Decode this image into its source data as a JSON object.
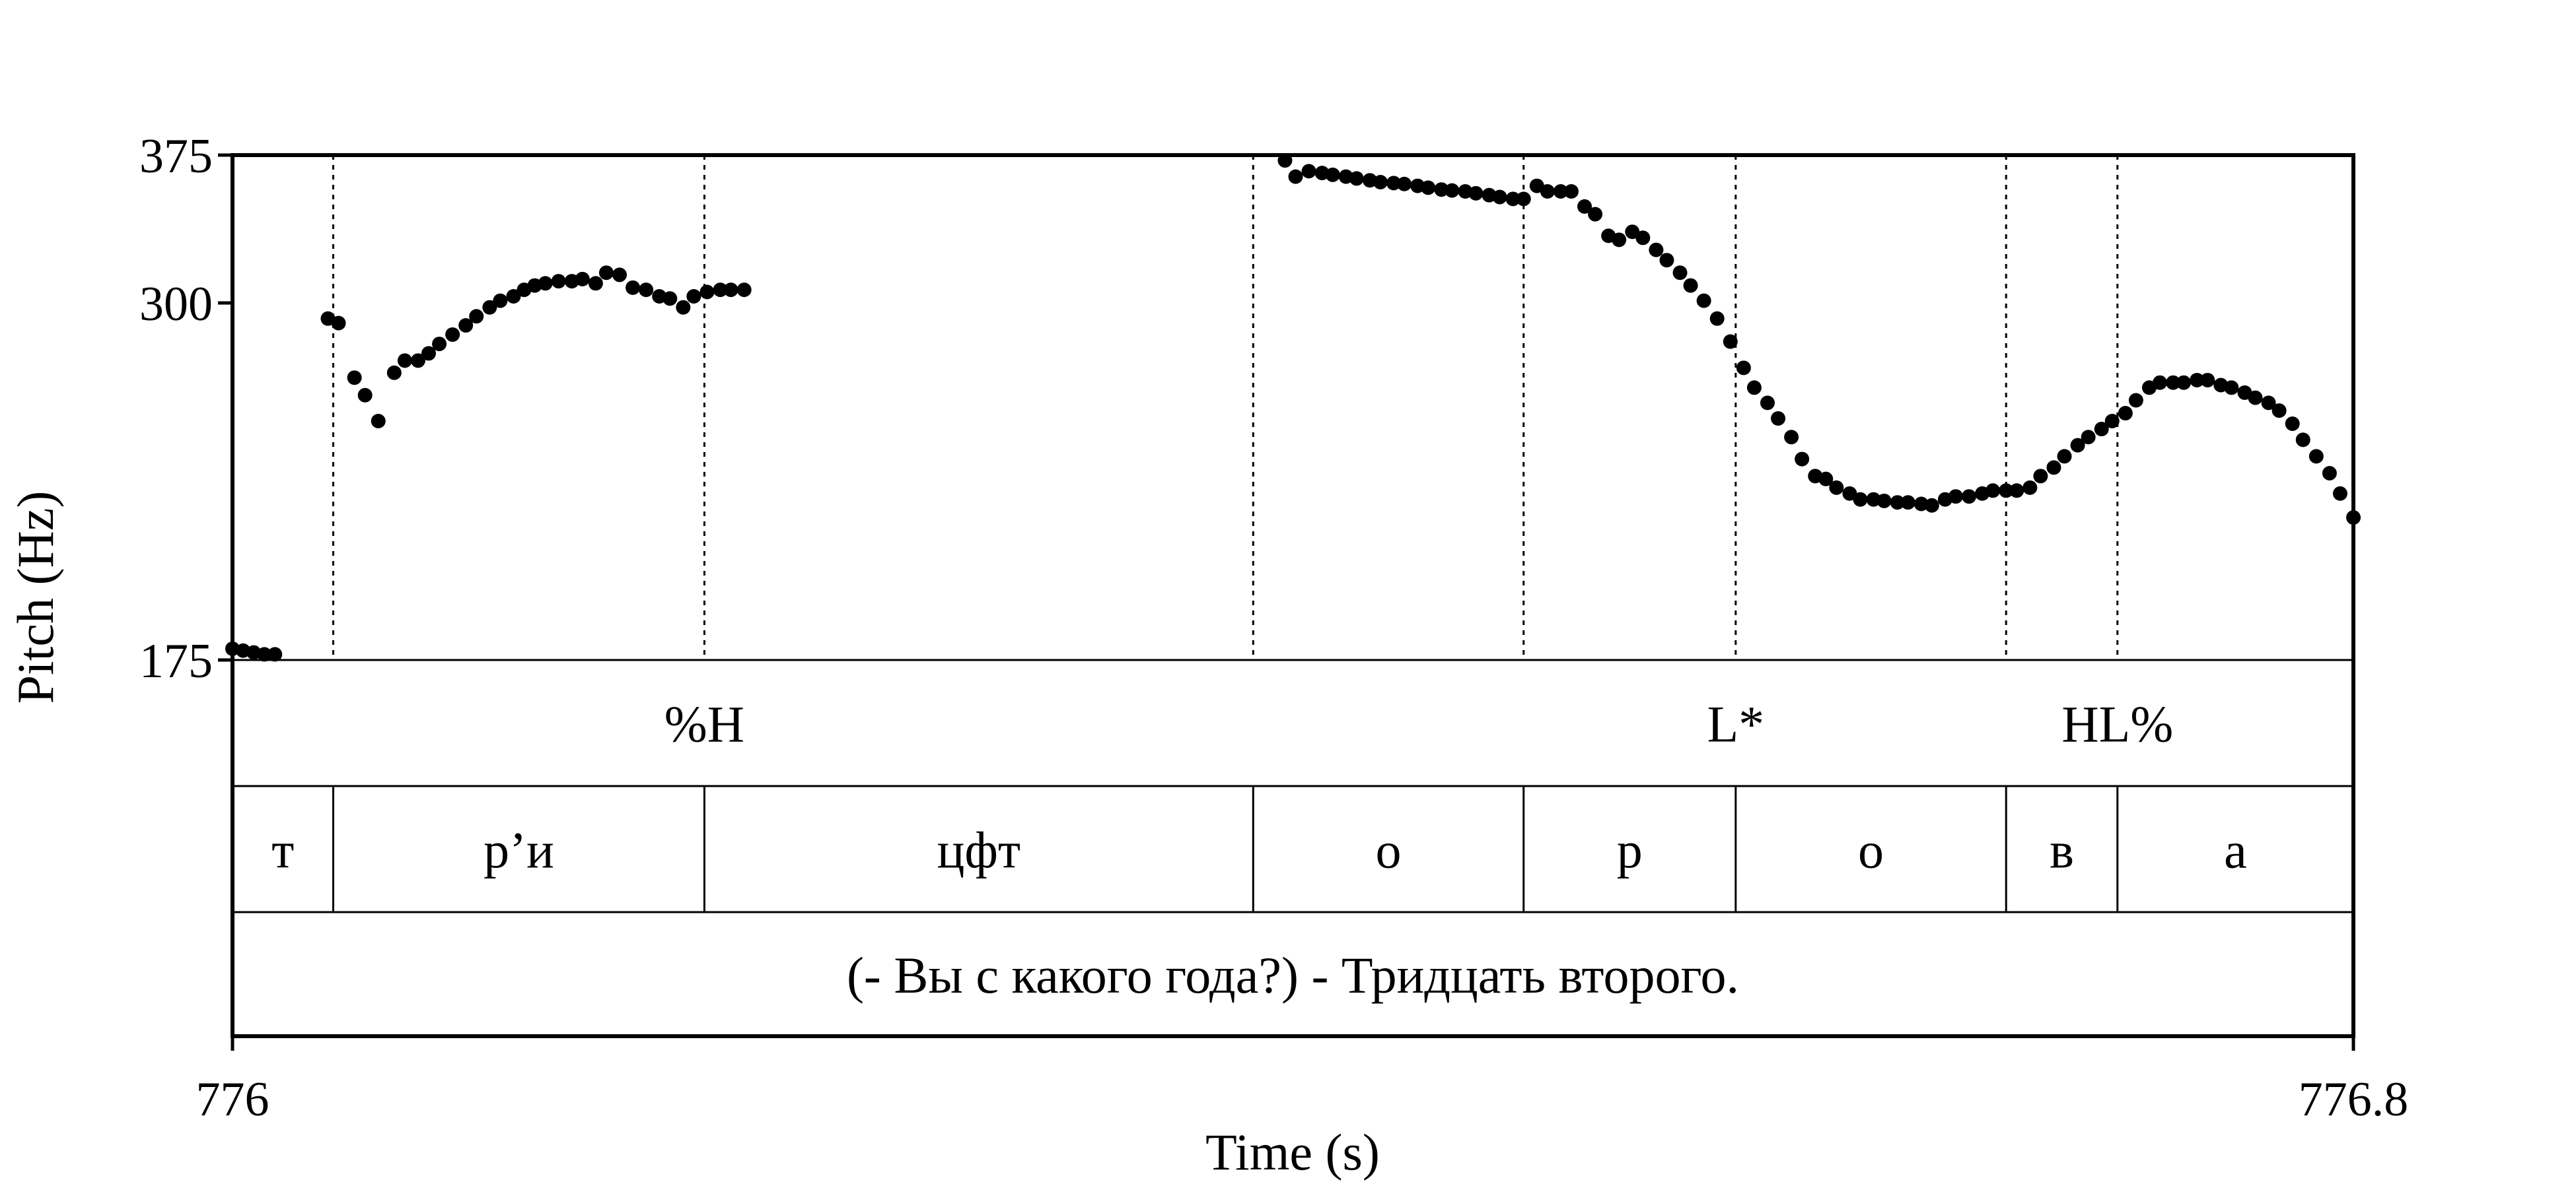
{
  "chart_data": {
    "type": "scatter",
    "ylabel": "Pitch (Hz)",
    "xlabel": "Time (s)",
    "xlim": [
      776,
      776.8
    ],
    "ylim": [
      175,
      375
    ],
    "y_ticks": [
      "375",
      "300",
      "175"
    ],
    "x_ticks": [
      "776",
      "776.8"
    ],
    "grid": false,
    "boundaries": [
      776.038,
      776.178,
      776.385,
      776.487,
      776.567,
      776.669,
      776.711
    ],
    "tiers": [
      {
        "name": "tones",
        "labels": [
          {
            "time": 776.178,
            "text": "%H"
          },
          {
            "time": 776.567,
            "text": "L*"
          },
          {
            "time": 776.711,
            "text": "HL%"
          }
        ]
      },
      {
        "name": "segments",
        "labels": [
          {
            "start": 776.0,
            "end": 776.038,
            "text": "т"
          },
          {
            "start": 776.038,
            "end": 776.178,
            "text": "р’и"
          },
          {
            "start": 776.178,
            "end": 776.385,
            "text": "цфт"
          },
          {
            "start": 776.385,
            "end": 776.487,
            "text": "о"
          },
          {
            "start": 776.487,
            "end": 776.567,
            "text": "р"
          },
          {
            "start": 776.567,
            "end": 776.669,
            "text": "о"
          },
          {
            "start": 776.669,
            "end": 776.711,
            "text": "в"
          },
          {
            "start": 776.711,
            "end": 776.8,
            "text": "а"
          }
        ]
      },
      {
        "name": "sentence",
        "labels": [
          {
            "start": 776.0,
            "end": 776.8,
            "text": "(- Вы с какого года?) - Тридцать второго."
          }
        ]
      }
    ],
    "series": [
      {
        "values": [
          [
            776.0,
            178
          ],
          [
            776.004,
            177.5
          ],
          [
            776.008,
            177
          ],
          [
            776.012,
            176.5
          ],
          [
            776.016,
            176.5
          ],
          [
            776.036,
            293
          ],
          [
            776.04,
            291
          ],
          [
            776.046,
            268
          ],
          [
            776.05,
            261
          ],
          [
            776.055,
            251
          ],
          [
            776.061,
            270
          ],
          [
            776.065,
            275
          ],
          [
            776.07,
            275
          ],
          [
            776.074,
            278
          ],
          [
            776.078,
            282
          ],
          [
            776.083,
            286
          ],
          [
            776.088,
            290
          ],
          [
            776.092,
            294
          ],
          [
            776.097,
            298
          ],
          [
            776.101,
            301
          ],
          [
            776.106,
            303
          ],
          [
            776.11,
            306
          ],
          [
            776.114,
            308
          ],
          [
            776.118,
            309
          ],
          [
            776.123,
            310
          ],
          [
            776.128,
            310
          ],
          [
            776.132,
            311
          ],
          [
            776.137,
            309
          ],
          [
            776.141,
            314
          ],
          [
            776.146,
            313
          ],
          [
            776.151,
            307
          ],
          [
            776.156,
            306
          ],
          [
            776.161,
            303
          ],
          [
            776.165,
            302
          ],
          [
            776.17,
            298
          ],
          [
            776.174,
            303
          ],
          [
            776.179,
            305
          ],
          [
            776.184,
            306
          ],
          [
            776.188,
            306
          ],
          [
            776.193,
            306
          ],
          [
            776.397,
            372
          ],
          [
            776.401,
            363
          ],
          [
            776.406,
            366
          ],
          [
            776.411,
            365
          ],
          [
            776.415,
            364
          ],
          [
            776.42,
            363
          ],
          [
            776.424,
            362
          ],
          [
            776.429,
            361
          ],
          [
            776.433,
            360
          ],
          [
            776.438,
            359.5
          ],
          [
            776.442,
            359
          ],
          [
            776.447,
            358
          ],
          [
            776.451,
            357
          ],
          [
            776.456,
            356
          ],
          [
            776.46,
            355.5
          ],
          [
            776.465,
            355
          ],
          [
            776.469,
            354
          ],
          [
            776.474,
            353
          ],
          [
            776.478,
            352
          ],
          [
            776.483,
            351
          ],
          [
            776.487,
            351
          ],
          [
            776.492,
            358
          ],
          [
            776.496,
            355
          ],
          [
            776.501,
            355
          ],
          [
            776.505,
            355
          ],
          [
            776.51,
            347
          ],
          [
            776.514,
            343
          ],
          [
            776.519,
            332
          ],
          [
            776.523,
            330
          ],
          [
            776.528,
            334
          ],
          [
            776.532,
            331
          ],
          [
            776.537,
            325
          ],
          [
            776.541,
            320
          ],
          [
            776.546,
            314
          ],
          [
            776.55,
            308
          ],
          [
            776.555,
            301
          ],
          [
            776.56,
            293
          ],
          [
            776.565,
            283
          ],
          [
            776.57,
            272
          ],
          [
            776.574,
            264
          ],
          [
            776.579,
            258
          ],
          [
            776.583,
            252
          ],
          [
            776.588,
            245
          ],
          [
            776.592,
            237
          ],
          [
            776.597,
            231
          ],
          [
            776.601,
            230
          ],
          [
            776.605,
            227
          ],
          [
            776.61,
            225
          ],
          [
            776.614,
            223
          ],
          [
            776.619,
            223
          ],
          [
            776.623,
            222.5
          ],
          [
            776.628,
            222
          ],
          [
            776.632,
            222
          ],
          [
            776.637,
            221.5
          ],
          [
            776.641,
            221
          ],
          [
            776.646,
            223
          ],
          [
            776.65,
            224
          ],
          [
            776.655,
            224
          ],
          [
            776.66,
            225
          ],
          [
            776.664,
            226
          ],
          [
            776.669,
            226
          ],
          [
            776.673,
            226
          ],
          [
            776.678,
            227
          ],
          [
            776.682,
            231
          ],
          [
            776.687,
            234
          ],
          [
            776.691,
            238
          ],
          [
            776.696,
            242
          ],
          [
            776.7,
            245
          ],
          [
            776.705,
            248
          ],
          [
            776.709,
            251
          ],
          [
            776.714,
            254
          ],
          [
            776.718,
            259
          ],
          [
            776.723,
            264
          ],
          [
            776.727,
            266
          ],
          [
            776.732,
            266
          ],
          [
            776.736,
            266
          ],
          [
            776.741,
            267
          ],
          [
            776.745,
            267
          ],
          [
            776.75,
            265
          ],
          [
            776.754,
            264
          ],
          [
            776.759,
            262
          ],
          [
            776.763,
            260
          ],
          [
            776.768,
            258
          ],
          [
            776.772,
            255
          ],
          [
            776.777,
            250
          ],
          [
            776.781,
            244
          ],
          [
            776.786,
            238
          ],
          [
            776.791,
            232
          ],
          [
            776.795,
            225
          ],
          [
            776.8,
            217
          ]
        ]
      }
    ]
  }
}
